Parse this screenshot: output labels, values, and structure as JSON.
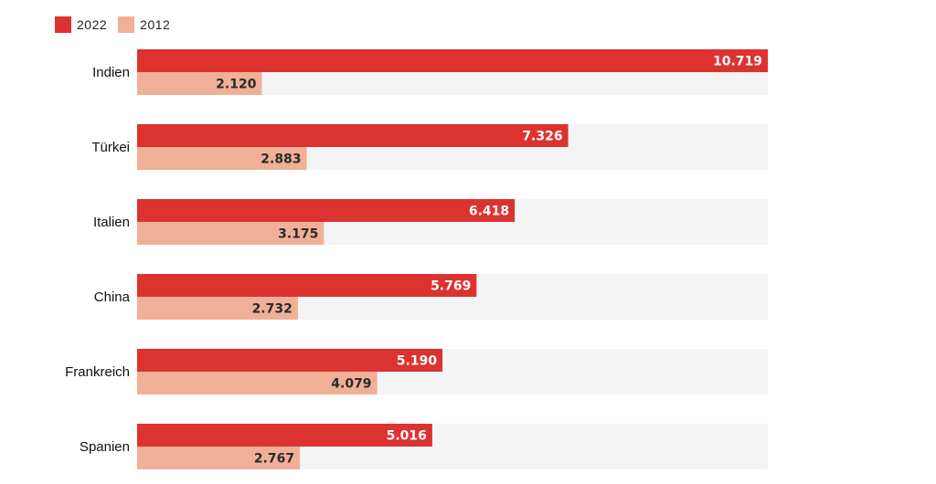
{
  "legend": [
    {
      "label": "2022",
      "color": "#dc3330"
    },
    {
      "label": "2012",
      "color": "#f0b097"
    }
  ],
  "chart_data": {
    "type": "bar",
    "orientation": "horizontal",
    "categories": [
      "Indien",
      "Türkei",
      "Italien",
      "China",
      "Frankreich",
      "Spanien"
    ],
    "series": [
      {
        "name": "2022",
        "color": "#dc3330",
        "values": [
          10719,
          7326,
          6418,
          5769,
          5190,
          5016
        ],
        "labels": [
          "10.719",
          "7.326",
          "6.418",
          "5.769",
          "5.190",
          "5.016"
        ]
      },
      {
        "name": "2012",
        "color": "#f0b097",
        "values": [
          2120,
          2883,
          3175,
          2732,
          4079,
          2767
        ],
        "labels": [
          "2.120",
          "2.883",
          "3.175",
          "2.732",
          "4.079",
          "2.767"
        ]
      }
    ],
    "xlim": [
      0,
      10719
    ],
    "grid": false,
    "legend_position": "top-left",
    "background_band_color": "#f4f4f4"
  }
}
